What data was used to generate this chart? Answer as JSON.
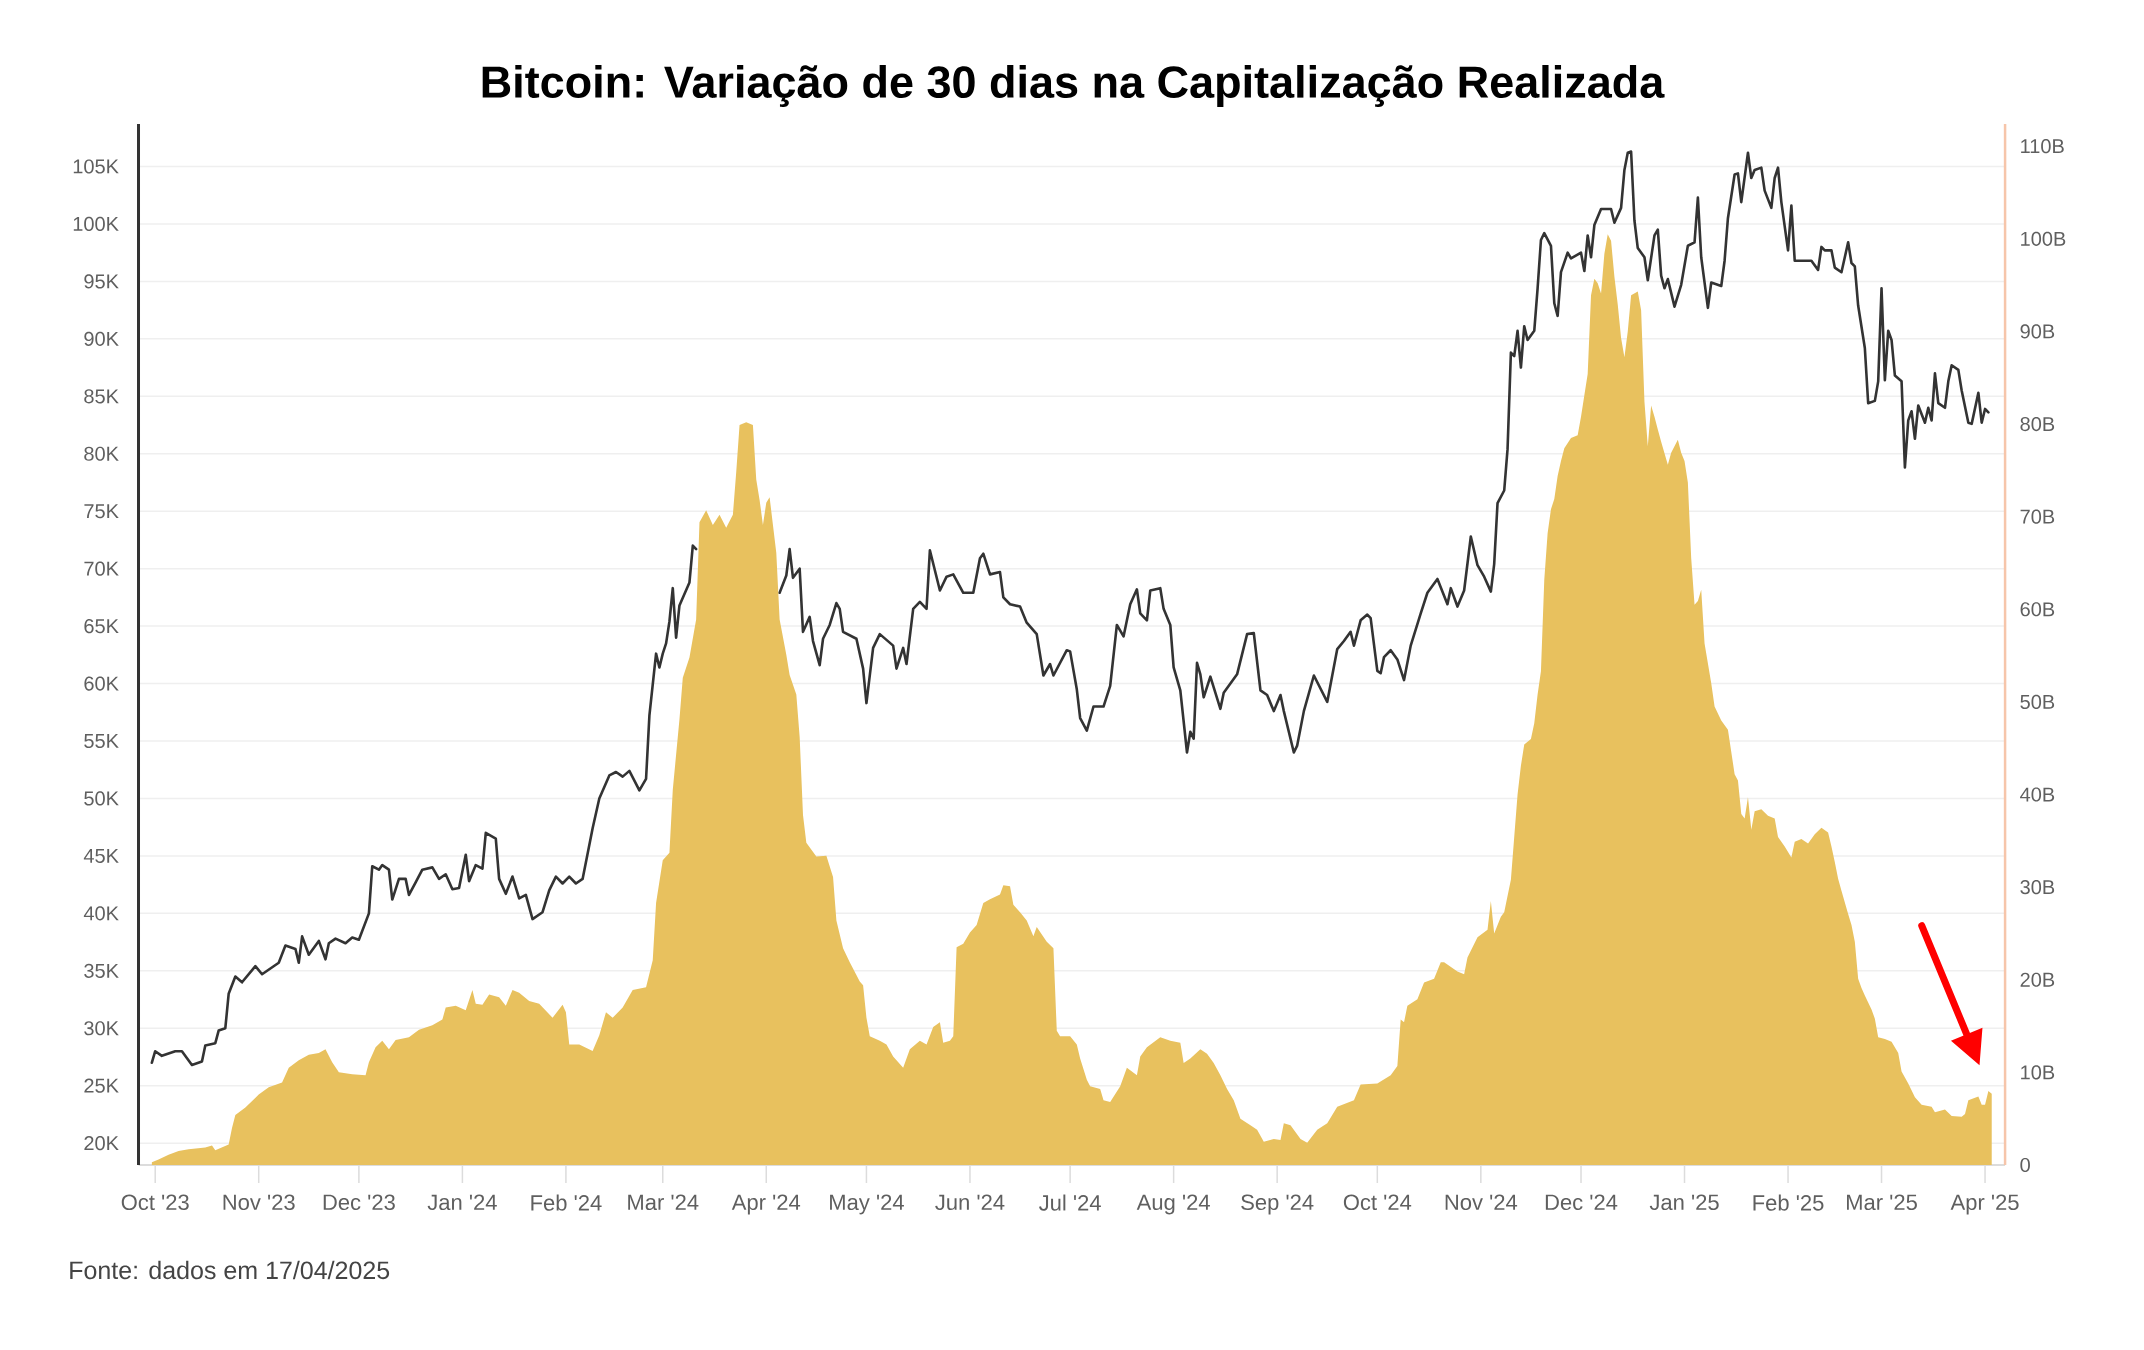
{
  "chart_data": {
    "type": "line",
    "title": "Bitcoin: Variação de 30 dias na Capitalização Realizada",
    "annotations": [
      "Fonte: dados em 17/04/2025"
    ],
    "xlim": [
      "2023-09-26",
      "2025-04-07"
    ],
    "xticks": [
      {
        "value": "2023-10-01",
        "label": "Oct '23"
      },
      {
        "value": "2023-11-01",
        "label": "Nov '23"
      },
      {
        "value": "2023-12-01",
        "label": "Dec '23"
      },
      {
        "value": "2024-01-01",
        "label": "Jan '24"
      },
      {
        "value": "2024-02-01",
        "label": "Feb '24"
      },
      {
        "value": "2024-03-01",
        "label": "Mar '24"
      },
      {
        "value": "2024-04-01",
        "label": "Apr '24"
      },
      {
        "value": "2024-05-01",
        "label": "May '24"
      },
      {
        "value": "2024-06-01",
        "label": "Jun '24"
      },
      {
        "value": "2024-07-01",
        "label": "Jul '24"
      },
      {
        "value": "2024-08-01",
        "label": "Aug '24"
      },
      {
        "value": "2024-09-01",
        "label": "Sep '24"
      },
      {
        "value": "2024-10-01",
        "label": "Oct '24"
      },
      {
        "value": "2024-11-01",
        "label": "Nov '24"
      },
      {
        "value": "2024-12-01",
        "label": "Dec '24"
      },
      {
        "value": "2025-01-01",
        "label": "Jan '25"
      },
      {
        "value": "2025-02-01",
        "label": "Feb '25"
      },
      {
        "value": "2025-03-01",
        "label": "Mar '25"
      },
      {
        "value": "2025-04-01",
        "label": "Apr '25"
      }
    ],
    "ylim": [
      18100,
      108700
    ],
    "yticks": [
      {
        "value": 20000,
        "label": "20K"
      },
      {
        "value": 25000,
        "label": "25K"
      },
      {
        "value": 30000,
        "label": "30K"
      },
      {
        "value": 35000,
        "label": "35K"
      },
      {
        "value": 40000,
        "label": "40K"
      },
      {
        "value": 45000,
        "label": "45K"
      },
      {
        "value": 50000,
        "label": "50K"
      },
      {
        "value": 55000,
        "label": "55K"
      },
      {
        "value": 60000,
        "label": "60K"
      },
      {
        "value": 65000,
        "label": "65K"
      },
      {
        "value": 70000,
        "label": "70K"
      },
      {
        "value": 75000,
        "label": "75K"
      },
      {
        "value": 80000,
        "label": "80K"
      },
      {
        "value": 85000,
        "label": "85K"
      },
      {
        "value": 90000,
        "label": "90K"
      },
      {
        "value": 95000,
        "label": "95K"
      },
      {
        "value": 100000,
        "label": "100K"
      },
      {
        "value": 105000,
        "label": "105K"
      }
    ],
    "y2lim": [
      0,
      112400000000.0
    ],
    "y2ticks": [
      0,
      {
        "value": 10000000000.0,
        "label": "10B"
      },
      {
        "value": 20000000000.0,
        "label": "20B"
      },
      {
        "value": 30000000000.0,
        "label": "30B"
      },
      {
        "value": 40000000000.0,
        "label": "40B"
      },
      {
        "value": 50000000000.0,
        "label": "50B"
      },
      {
        "value": 60000000000.0,
        "label": "60B"
      },
      {
        "value": 70000000000.0,
        "label": "70B"
      },
      {
        "value": 80000000000.0,
        "label": "80B"
      },
      {
        "value": 90000000000.0,
        "label": "90B"
      },
      {
        "value": 100000000000.0,
        "label": "100B"
      },
      {
        "value": 110000000000.0,
        "label": "110B"
      }
    ],
    "grid": "y",
    "series": [
      {
        "color": "#333333",
        "x": [
          "2023-09-30",
          "2023-10-01",
          "2023-10-03",
          "2023-10-07",
          "2023-10-09",
          "2023-10-12",
          "2023-10-15",
          "2023-10-16",
          "2023-10-19",
          "2023-10-20",
          "2023-10-22",
          "2023-10-23",
          "2023-10-25",
          "2023-10-27",
          "2023-10-31",
          "2023-11-02",
          "2023-11-07",
          "2023-11-09",
          "2023-11-12",
          "2023-11-13",
          "2023-11-14",
          "2023-11-16",
          "2023-11-19",
          "2023-11-21",
          "2023-11-22",
          "2023-11-24",
          "2023-11-27",
          "2023-11-29",
          "2023-12-01",
          "2023-12-04",
          "2023-12-05",
          "2023-12-07",
          "2023-12-08",
          "2023-12-10",
          "2023-12-11",
          "2023-12-13",
          "2023-12-15",
          "2023-12-16",
          "2023-12-18",
          "2023-12-20",
          "2023-12-23",
          "2023-12-25",
          "2023-12-27",
          "2023-12-29",
          "2023-12-31",
          "2024-01-02",
          "2024-01-03",
          "2024-01-05",
          "2024-01-07",
          "2024-01-08",
          "2024-01-11",
          "2024-01-12",
          "2024-01-14",
          "2024-01-16",
          "2024-01-18",
          "2024-01-20",
          "2024-01-22",
          "2024-01-25",
          "2024-01-27",
          "2024-01-29",
          "2024-01-31",
          "2024-02-02",
          "2024-02-04",
          "2024-02-06",
          "2024-02-09",
          "2024-02-11",
          "2024-02-14",
          "2024-02-16",
          "2024-02-18",
          "2024-02-20",
          "2024-02-23",
          "2024-02-25",
          "2024-02-26",
          "2024-02-28",
          "2024-02-29",
          "2024-03-01",
          "2024-03-02",
          "2024-03-03",
          "2024-03-04",
          "2024-03-05",
          "2024-03-06",
          "2024-03-09",
          "2024-03-10",
          "2024-03-11",
          "2024-03-20",
          "2024-04-05",
          "2024-04-07",
          "2024-04-08",
          "2024-04-09",
          "2024-04-11",
          "2024-04-12",
          "2024-04-14",
          "2024-04-15",
          "2024-04-17",
          "2024-04-18",
          "2024-04-20",
          "2024-04-22",
          "2024-04-23",
          "2024-04-24",
          "2024-04-28",
          "2024-04-30",
          "2024-05-01",
          "2024-05-03",
          "2024-05-05",
          "2024-05-09",
          "2024-05-10",
          "2024-05-12",
          "2024-05-13",
          "2024-05-15",
          "2024-05-17",
          "2024-05-19",
          "2024-05-20",
          "2024-05-23",
          "2024-05-25",
          "2024-05-27",
          "2024-05-30",
          "2024-06-02",
          "2024-06-04",
          "2024-06-05",
          "2024-06-07",
          "2024-06-10",
          "2024-06-11",
          "2024-06-13",
          "2024-06-16",
          "2024-06-18",
          "2024-06-21",
          "2024-06-23",
          "2024-06-25",
          "2024-06-26",
          "2024-06-30",
          "2024-07-01",
          "2024-07-03",
          "2024-07-04",
          "2024-07-06",
          "2024-07-08",
          "2024-07-11",
          "2024-07-13",
          "2024-07-15",
          "2024-07-17",
          "2024-07-19",
          "2024-07-21",
          "2024-07-22",
          "2024-07-24",
          "2024-07-25",
          "2024-07-28",
          "2024-07-29",
          "2024-07-31",
          "2024-08-01",
          "2024-08-03",
          "2024-08-05",
          "2024-08-06",
          "2024-08-07",
          "2024-08-08",
          "2024-08-09",
          "2024-08-10",
          "2024-08-12",
          "2024-08-15",
          "2024-08-16",
          "2024-08-20",
          "2024-08-23",
          "2024-08-25",
          "2024-08-27",
          "2024-08-29",
          "2024-08-31",
          "2024-09-02",
          "2024-09-03",
          "2024-09-06",
          "2024-09-07",
          "2024-09-09",
          "2024-09-12",
          "2024-09-16",
          "2024-09-19",
          "2024-09-21",
          "2024-09-23",
          "2024-09-24",
          "2024-09-26",
          "2024-09-28",
          "2024-09-29",
          "2024-10-01",
          "2024-10-02",
          "2024-10-03",
          "2024-10-05",
          "2024-10-07",
          "2024-10-09",
          "2024-10-11",
          "2024-10-14",
          "2024-10-16",
          "2024-10-19",
          "2024-10-22",
          "2024-10-23",
          "2024-10-25",
          "2024-10-27",
          "2024-10-29",
          "2024-10-31",
          "2024-11-02",
          "2024-11-04",
          "2024-11-05",
          "2024-11-06",
          "2024-11-08",
          "2024-11-09",
          "2024-11-10",
          "2024-11-11",
          "2024-11-12",
          "2024-11-13",
          "2024-11-14",
          "2024-11-15",
          "2024-11-17",
          "2024-11-18",
          "2024-11-19",
          "2024-11-20",
          "2024-11-22",
          "2024-11-23",
          "2024-11-24",
          "2024-11-25",
          "2024-11-27",
          "2024-11-28",
          "2024-12-01",
          "2024-12-02",
          "2024-12-03",
          "2024-12-04",
          "2024-12-05",
          "2024-12-07",
          "2024-12-10",
          "2024-12-11",
          "2024-12-13",
          "2024-12-14",
          "2024-12-15",
          "2024-12-16",
          "2024-12-17",
          "2024-12-18",
          "2024-12-20",
          "2024-12-21",
          "2024-12-23",
          "2024-12-24",
          "2024-12-25",
          "2024-12-26",
          "2024-12-27",
          "2024-12-29",
          "2024-12-31",
          "2025-01-02",
          "2025-01-04",
          "2025-01-05",
          "2025-01-06",
          "2025-01-08",
          "2025-01-09",
          "2025-01-12",
          "2025-01-13",
          "2025-01-14",
          "2025-01-16",
          "2025-01-17",
          "2025-01-18",
          "2025-01-20",
          "2025-01-21",
          "2025-01-22",
          "2025-01-24",
          "2025-01-25",
          "2025-01-27",
          "2025-01-28",
          "2025-01-29",
          "2025-01-30",
          "2025-02-01",
          "2025-02-02",
          "2025-02-03",
          "2025-02-06",
          "2025-02-08",
          "2025-02-10",
          "2025-02-11",
          "2025-02-12",
          "2025-02-14",
          "2025-02-15",
          "2025-02-17",
          "2025-02-19",
          "2025-02-20",
          "2025-02-21",
          "2025-02-22",
          "2025-02-24",
          "2025-02-25",
          "2025-02-27",
          "2025-02-28",
          "2025-03-01",
          "2025-03-02",
          "2025-03-03",
          "2025-03-04",
          "2025-03-05",
          "2025-03-07",
          "2025-03-08",
          "2025-03-09",
          "2025-03-10",
          "2025-03-11",
          "2025-03-12",
          "2025-03-14",
          "2025-03-15",
          "2025-03-16",
          "2025-03-17",
          "2025-03-18",
          "2025-03-20",
          "2025-03-21",
          "2025-03-22",
          "2025-03-24",
          "2025-03-25",
          "2025-03-27",
          "2025-03-28",
          "2025-03-30",
          "2025-03-31",
          "2025-04-01",
          "2025-04-02"
        ],
        "values": [
          27000,
          28000,
          27600,
          28000,
          28000,
          26800,
          27100,
          28500,
          28700,
          29800,
          30000,
          33000,
          34500,
          34000,
          35400,
          34700,
          35700,
          37200,
          36900,
          35700,
          38000,
          36400,
          37600,
          36000,
          37400,
          37800,
          37400,
          37900,
          37700,
          40000,
          44100,
          43800,
          44200,
          43800,
          41200,
          43000,
          43000,
          41600,
          42700,
          43800,
          44000,
          43000,
          43400,
          42100,
          42200,
          45100,
          42800,
          44200,
          43900,
          47000,
          46500,
          43000,
          41700,
          43200,
          41300,
          41600,
          39500,
          40100,
          42000,
          43200,
          42600,
          43200,
          42600,
          43000,
          47400,
          50000,
          52000,
          52300,
          51900,
          52400,
          50700,
          51700,
          57200,
          62600,
          61400,
          62600,
          63500,
          65400,
          68300,
          64000,
          66800,
          68800,
          72000,
          71700,
          null,
          67900,
          69400,
          71700,
          69200,
          70000,
          64500,
          65800,
          63700,
          61600,
          63900,
          65100,
          67000,
          66500,
          64500,
          63900,
          61300,
          58300,
          63100,
          64300,
          63300,
          61300,
          63100,
          61700,
          66500,
          67100,
          66500,
          71600,
          68100,
          69300,
          69500,
          67900,
          67900,
          70900,
          71300,
          69500,
          69700,
          67500,
          66900,
          66700,
          65300,
          64300,
          60700,
          61700,
          60700,
          62900,
          62800,
          59500,
          57000,
          55900,
          58000,
          58000,
          59800,
          65100,
          64100,
          66900,
          68200,
          66100,
          65500,
          68100,
          68300,
          66500,
          65100,
          61400,
          59400,
          54000,
          55800,
          55200,
          61800,
          60800,
          58800,
          60600,
          57800,
          59200,
          60800,
          64300,
          64400,
          59400,
          59000,
          57600,
          59000,
          57600,
          54000,
          54600,
          57600,
          60700,
          58400,
          63000,
          63700,
          64500,
          63300,
          65500,
          66000,
          65700,
          61100,
          60900,
          62300,
          62900,
          62100,
          60300,
          63300,
          66100,
          67900,
          69100,
          66900,
          68300,
          66700,
          68100,
          72800,
          70300,
          69300,
          68000,
          70400,
          75700,
          76800,
          80400,
          88800,
          88500,
          90700,
          87500,
          91100,
          89900,
          90700,
          94400,
          98600,
          99200,
          98100,
          93100,
          92000,
          95800,
          97500,
          97000,
          97500,
          95900,
          99000,
          97100,
          99900,
          101300,
          101300,
          100100,
          101400,
          104700,
          106200,
          106300,
          100300,
          97900,
          97100,
          95100,
          99000,
          99500,
          95500,
          94400,
          95200,
          92800,
          94700,
          98100,
          98400,
          102300,
          97100,
          92700,
          94900,
          94600,
          96800,
          100500,
          104300,
          104400,
          101900,
          106200,
          104000,
          104700,
          104900,
          102900,
          101400,
          104000,
          104900,
          101900,
          97700,
          101600,
          96800,
          96800,
          96800,
          96000,
          98000,
          97700,
          97700,
          96200,
          95800,
          98400,
          96600,
          96300,
          92900,
          89200,
          84400,
          84600,
          86300,
          94400,
          86400,
          90700,
          89900,
          86800,
          86300,
          78800,
          82900,
          83700,
          81300,
          84200,
          82700,
          84000,
          82900,
          87000,
          84400,
          84000,
          86300,
          87700,
          87300,
          85500,
          82700,
          82600,
          85300,
          82700,
          83900,
          83600
        ]
      },
      {
        "type": "area",
        "axis": "y2",
        "color": "#e8c15e",
        "x": [
          "2023-09-30",
          "2023-10-02",
          "2023-10-05",
          "2023-10-08",
          "2023-10-11",
          "2023-10-16",
          "2023-10-18",
          "2023-10-19",
          "2023-10-23",
          "2023-10-24",
          "2023-10-25",
          "2023-10-28",
          "2023-11-01",
          "2023-11-04",
          "2023-11-08",
          "2023-11-10",
          "2023-11-13",
          "2023-11-16",
          "2023-11-19",
          "2023-11-21",
          "2023-11-23",
          "2023-11-25",
          "2023-11-29",
          "2023-12-03",
          "2023-12-04",
          "2023-12-06",
          "2023-12-08",
          "2023-12-10",
          "2023-12-12",
          "2023-12-16",
          "2023-12-19",
          "2023-12-23",
          "2023-12-26",
          "2023-12-27",
          "2023-12-30",
          "2024-01-02",
          "2024-01-04",
          "2024-01-05",
          "2024-01-07",
          "2024-01-09",
          "2024-01-12",
          "2024-01-14",
          "2024-01-16",
          "2024-01-18",
          "2024-01-21",
          "2024-01-24",
          "2024-01-28",
          "2024-01-31",
          "2024-02-01",
          "2024-02-02",
          "2024-02-05",
          "2024-02-09",
          "2024-02-11",
          "2024-02-13",
          "2024-02-15",
          "2024-02-18",
          "2024-02-21",
          "2024-02-25",
          "2024-02-27",
          "2024-02-28",
          "2024-03-01",
          "2024-03-03",
          "2024-03-04",
          "2024-03-06",
          "2024-03-07",
          "2024-03-09",
          "2024-03-11",
          "2024-03-12",
          "2024-03-14",
          "2024-03-16",
          "2024-03-18",
          "2024-03-20",
          "2024-03-22",
          "2024-03-23",
          "2024-03-24",
          "2024-03-26",
          "2024-03-28",
          "2024-03-29",
          "2024-03-30",
          "2024-03-31",
          "2024-04-01",
          "2024-04-02",
          "2024-04-03",
          "2024-04-04",
          "2024-04-05",
          "2024-04-07",
          "2024-04-08",
          "2024-04-10",
          "2024-04-11",
          "2024-04-12",
          "2024-04-13",
          "2024-04-16",
          "2024-04-19",
          "2024-04-21",
          "2024-04-22",
          "2024-04-24",
          "2024-04-26",
          "2024-04-29",
          "2024-04-30",
          "2024-05-01",
          "2024-05-02",
          "2024-05-05",
          "2024-05-07",
          "2024-05-09",
          "2024-05-12",
          "2024-05-14",
          "2024-05-17",
          "2024-05-19",
          "2024-05-21",
          "2024-05-23",
          "2024-05-24",
          "2024-05-26",
          "2024-05-27",
          "2024-05-28",
          "2024-05-30",
          "2024-06-01",
          "2024-06-03",
          "2024-06-05",
          "2024-06-07",
          "2024-06-10",
          "2024-06-11",
          "2024-06-13",
          "2024-06-14",
          "2024-06-16",
          "2024-06-18",
          "2024-06-20",
          "2024-06-21",
          "2024-06-24",
          "2024-06-26",
          "2024-06-27",
          "2024-06-28",
          "2024-07-01",
          "2024-07-03",
          "2024-07-04",
          "2024-07-06",
          "2024-07-07",
          "2024-07-10",
          "2024-07-11",
          "2024-07-13",
          "2024-07-16",
          "2024-07-18",
          "2024-07-21",
          "2024-07-22",
          "2024-07-24",
          "2024-07-28",
          "2024-07-31",
          "2024-08-03",
          "2024-08-04",
          "2024-08-06",
          "2024-08-09",
          "2024-08-11",
          "2024-08-13",
          "2024-08-15",
          "2024-08-17",
          "2024-08-19",
          "2024-08-21",
          "2024-08-24",
          "2024-08-26",
          "2024-08-28",
          "2024-08-31",
          "2024-09-02",
          "2024-09-03",
          "2024-09-05",
          "2024-09-08",
          "2024-09-10",
          "2024-09-13",
          "2024-09-16",
          "2024-09-19",
          "2024-09-24",
          "2024-09-26",
          "2024-10-01",
          "2024-10-05",
          "2024-10-07",
          "2024-10-08",
          "2024-10-09",
          "2024-10-10",
          "2024-10-13",
          "2024-10-15",
          "2024-10-18",
          "2024-10-20",
          "2024-10-21",
          "2024-10-25",
          "2024-10-27",
          "2024-10-28",
          "2024-10-31",
          "2024-11-03",
          "2024-11-04",
          "2024-11-05",
          "2024-11-07",
          "2024-11-08",
          "2024-11-10",
          "2024-11-11",
          "2024-11-12",
          "2024-11-13",
          "2024-11-14",
          "2024-11-16",
          "2024-11-17",
          "2024-11-18",
          "2024-11-19",
          "2024-11-20",
          "2024-11-21",
          "2024-11-22",
          "2024-11-23",
          "2024-11-24",
          "2024-11-25",
          "2024-11-26",
          "2024-11-28",
          "2024-11-30",
          "2024-12-01",
          "2024-12-02",
          "2024-12-03",
          "2024-12-04",
          "2024-12-05",
          "2024-12-06",
          "2024-12-07",
          "2024-12-08",
          "2024-12-09",
          "2024-12-10",
          "2024-12-11",
          "2024-12-12",
          "2024-12-13",
          "2024-12-14",
          "2024-12-15",
          "2024-12-16",
          "2024-12-18",
          "2024-12-19",
          "2024-12-20",
          "2024-12-21",
          "2024-12-22",
          "2024-12-23",
          "2024-12-24",
          "2024-12-25",
          "2024-12-27",
          "2024-12-28",
          "2024-12-30",
          "2024-12-31",
          "2025-01-01",
          "2025-01-02",
          "2025-01-03",
          "2025-01-04",
          "2025-01-05",
          "2025-01-06",
          "2025-01-07",
          "2025-01-09",
          "2025-01-10",
          "2025-01-12",
          "2025-01-14",
          "2025-01-16",
          "2025-01-17",
          "2025-01-18",
          "2025-01-19",
          "2025-01-20",
          "2025-01-21",
          "2025-01-22",
          "2025-01-24",
          "2025-01-26",
          "2025-01-28",
          "2025-01-29",
          "2025-01-31",
          "2025-02-02",
          "2025-02-03",
          "2025-02-05",
          "2025-02-07",
          "2025-02-09",
          "2025-02-11",
          "2025-02-13",
          "2025-02-14",
          "2025-02-15",
          "2025-02-16",
          "2025-02-17",
          "2025-02-19",
          "2025-02-20",
          "2025-02-21",
          "2025-02-22",
          "2025-02-23",
          "2025-02-24",
          "2025-02-26",
          "2025-02-27",
          "2025-02-28",
          "2025-03-02",
          "2025-03-04",
          "2025-03-06",
          "2025-03-07",
          "2025-03-09",
          "2025-03-11",
          "2025-03-13",
          "2025-03-16",
          "2025-03-17",
          "2025-03-20",
          "2025-03-22",
          "2025-03-25",
          "2025-03-26",
          "2025-03-27",
          "2025-03-30",
          "2025-03-31",
          "2025-04-01",
          "2025-04-02",
          "2025-04-03"
        ],
        "values": [
          300000000.0,
          600000000.0,
          1100000000.0,
          1500000000.0,
          1700000000.0,
          1900000000.0,
          2100000000.0,
          1600000000.0,
          2200000000.0,
          4000000000.0,
          5400000000.0,
          6200000000.0,
          7600000000.0,
          8400000000.0,
          8900000000.0,
          10500000000.0,
          11300000000.0,
          11900000000.0,
          12100000000.0,
          12500000000.0,
          11100000000.0,
          10000000000.0,
          9800000000.0,
          9700000000.0,
          11100000000.0,
          12700000000.0,
          13400000000.0,
          12500000000.0,
          13500000000.0,
          13800000000.0,
          14600000000.0,
          15100000000.0,
          15700000000.0,
          17000000000.0,
          17200000000.0,
          16700000000.0,
          18900000000.0,
          17400000000.0,
          17300000000.0,
          18400000000.0,
          18100000000.0,
          17200000000.0,
          18900000000.0,
          18600000000.0,
          17700000000.0,
          17400000000.0,
          15900000000.0,
          17300000000.0,
          16500000000.0,
          13000000000.0,
          13000000000.0,
          12300000000.0,
          14000000000.0,
          16500000000.0,
          15900000000.0,
          17000000000.0,
          18900000000.0,
          19200000000.0,
          22100000000.0,
          28300000000.0,
          32900000000.0,
          33700000000.0,
          40500000000.0,
          48100000000.0,
          52600000000.0,
          54800000000.0,
          58900000000.0,
          69400000000.0,
          70700000000.0,
          69100000000.0,
          70200000000.0,
          68800000000.0,
          70200000000.0,
          74800000000.0,
          79900000000.0,
          80200000000.0,
          79900000000.0,
          74000000000.0,
          71800000000.0,
          69100000000.0,
          71500000000.0,
          72100000000.0,
          69100000000.0,
          66100000000.0,
          58900000000.0,
          55100000000.0,
          52900000000.0,
          50800000000.0,
          46200000000.0,
          37800000000.0,
          34800000000.0,
          33300000000.0,
          33400000000.0,
          31100000000.0,
          26400000000.0,
          23400000000.0,
          21900000000.0,
          19800000000.0,
          19400000000.0,
          15900000000.0,
          13900000000.0,
          13400000000.0,
          13000000000.0,
          11700000000.0,
          10500000000.0,
          12500000000.0,
          13400000000.0,
          13000000000.0,
          14900000000.0,
          15400000000.0,
          13200000000.0,
          13400000000.0,
          13900000000.0,
          23500000000.0,
          23900000000.0,
          25100000000.0,
          25900000000.0,
          28300000000.0,
          28700000000.0,
          29200000000.0,
          30200000000.0,
          30100000000.0,
          28100000000.0,
          27300000000.0,
          26400000000.0,
          24700000000.0,
          25700000000.0,
          24100000000.0,
          23400000000.0,
          14500000000.0,
          13900000000.0,
          13900000000.0,
          13000000000.0,
          11500000000.0,
          9200000000.0,
          8500000000.0,
          8200000000.0,
          7000000000.0,
          6800000000.0,
          8500000000.0,
          10500000000.0,
          9700000000.0,
          11700000000.0,
          12700000000.0,
          13800000000.0,
          13400000000.0,
          13200000000.0,
          11000000000.0,
          11500000000.0,
          12500000000.0,
          12000000000.0,
          11000000000.0,
          9700000000.0,
          8200000000.0,
          7000000000.0,
          5000000000.0,
          4300000000.0,
          3800000000.0,
          2500000000.0,
          2800000000.0,
          2700000000.0,
          4500000000.0,
          4300000000.0,
          2800000000.0,
          2400000000.0,
          3800000000.0,
          4500000000.0,
          6300000000.0,
          7000000000.0,
          8700000000.0,
          8800000000.0,
          9700000000.0,
          10700000000.0,
          15700000000.0,
          15400000000.0,
          17200000000.0,
          17900000000.0,
          19700000000.0,
          20100000000.0,
          21900000000.0,
          21900000000.0,
          20900000000.0,
          20600000000.0,
          22400000000.0,
          24600000000.0,
          25400000000.0,
          28500000000.0,
          25000000000.0,
          26800000000.0,
          27300000000.0,
          30800000000.0,
          35400000000.0,
          40000000000.0,
          43100000000.0,
          45400000000.0,
          46000000000.0,
          47700000000.0,
          50800000000.0,
          53300000000.0,
          63200000000.0,
          68200000000.0,
          70800000000.0,
          71900000000.0,
          74400000000.0,
          76000000000.0,
          77400000000.0,
          78500000000.0,
          78800000000.0,
          80800000000.0,
          83100000000.0,
          85400000000.0,
          93900000000.0,
          95700000000.0,
          95200000000.0,
          94100000000.0,
          98400000000.0,
          100500000000.0,
          99800000000.0,
          95900000000.0,
          92900000000.0,
          89300000000.0,
          87200000000.0,
          90000000000.0,
          93900000000.0,
          94300000000.0,
          92300000000.0,
          82400000000.0,
          77600000000.0,
          82000000000.0,
          80800000000.0,
          79400000000.0,
          78100000000.0,
          75600000000.0,
          76900000000.0,
          78300000000.0,
          76900000000.0,
          76000000000.0,
          73700000000.0,
          65500000000.0,
          60500000000.0,
          60900000000.0,
          62100000000.0,
          56300000000.0,
          52000000000.0,
          49500000000.0,
          48000000000.0,
          47000000000.0,
          42200000000.0,
          41500000000.0,
          37900000000.0,
          37400000000.0,
          39700000000.0,
          36200000000.0,
          38200000000.0,
          38400000000.0,
          37700000000.0,
          37400000000.0,
          35400000000.0,
          34400000000.0,
          33200000000.0,
          34900000000.0,
          35200000000.0,
          34700000000.0,
          35700000000.0,
          36400000000.0,
          35900000000.0,
          34400000000.0,
          32700000000.0,
          30900000000.0,
          29600000000.0,
          27100000000.0,
          25900000000.0,
          24100000000.0,
          20100000000.0,
          19100000000.0,
          18300000000.0,
          16800000000.0,
          15800000000.0,
          13800000000.0,
          13600000000.0,
          13300000000.0,
          12100000000.0,
          10100000000.0,
          8800000000.0,
          7300000000.0,
          6500000000.0,
          6300000000.0,
          5700000000.0,
          6000000000.0,
          5300000000.0,
          5200000000.0,
          5500000000.0,
          7000000000.0,
          7400000000.0,
          6500000000.0,
          6500000000.0,
          8000000000.0,
          7700000000.0
        ]
      }
    ]
  }
}
